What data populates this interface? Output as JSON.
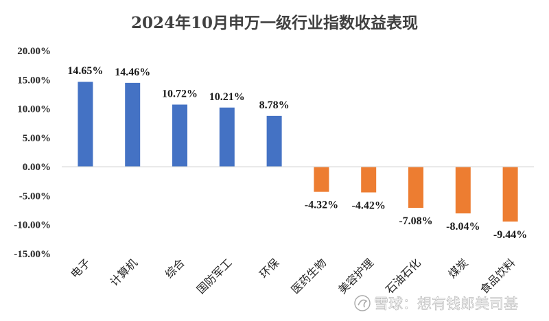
{
  "chart_data": {
    "type": "bar",
    "title": "2024年10月申万一级行业指数收益表现",
    "xlabel": "",
    "ylabel": "",
    "ylim": [
      -15,
      20
    ],
    "yticks": [
      20,
      15,
      10,
      5,
      0,
      -5,
      -10,
      -15
    ],
    "ytick_labels": [
      "20.00%",
      "15.00%",
      "10.00%",
      "5.00%",
      "0.00%",
      "-5.00%",
      "-10.00%",
      "-15.00%"
    ],
    "categories": [
      "电子",
      "计算机",
      "综合",
      "国防军工",
      "环保",
      "医药生物",
      "美容护理",
      "石油石化",
      "煤炭",
      "食品饮料"
    ],
    "values": [
      14.65,
      14.46,
      10.72,
      10.21,
      8.78,
      -4.32,
      -4.42,
      -7.08,
      -8.04,
      -9.44
    ],
    "value_labels": [
      "14.65%",
      "14.46%",
      "10.72%",
      "10.21%",
      "8.78%",
      "-4.32%",
      "-4.42%",
      "-7.08%",
      "-8.04%",
      "-9.44%"
    ],
    "grid": false,
    "legend": "none",
    "colors": {
      "positive": "#4472C4",
      "negative": "#ED7D31",
      "axis": "#D9D9D9"
    }
  },
  "watermark": {
    "icon": "snowball-icon",
    "text": "雪球：想有钱郎美司基"
  }
}
